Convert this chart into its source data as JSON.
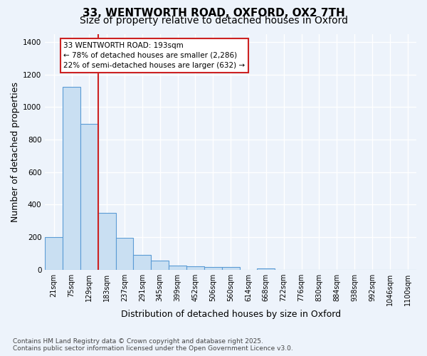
{
  "title_line1": "33, WENTWORTH ROAD, OXFORD, OX2 7TH",
  "title_line2": "Size of property relative to detached houses in Oxford",
  "xlabel": "Distribution of detached houses by size in Oxford",
  "ylabel": "Number of detached properties",
  "categories": [
    "21sqm",
    "75sqm",
    "129sqm",
    "183sqm",
    "237sqm",
    "291sqm",
    "345sqm",
    "399sqm",
    "452sqm",
    "506sqm",
    "560sqm",
    "614sqm",
    "668sqm",
    "722sqm",
    "776sqm",
    "830sqm",
    "884sqm",
    "938sqm",
    "992sqm",
    "1046sqm",
    "1100sqm"
  ],
  "values": [
    200,
    1125,
    895,
    350,
    198,
    90,
    57,
    25,
    22,
    16,
    16,
    0,
    10,
    0,
    0,
    0,
    0,
    0,
    0,
    0,
    0
  ],
  "bar_color": "#c9dff2",
  "bar_edge_color": "#5b9bd5",
  "background_color": "#edf3fb",
  "grid_color": "#d0dff0",
  "vline_color": "#cc2222",
  "annotation_line1": "33 WENTWORTH ROAD: 193sqm",
  "annotation_line2": "← 78% of detached houses are smaller (2,286)",
  "annotation_line3": "22% of semi-detached houses are larger (632) →",
  "annotation_box_color": "#cc2222",
  "annotation_fill": "#ffffff",
  "ylim_max": 1450,
  "yticks": [
    0,
    200,
    400,
    600,
    800,
    1000,
    1200,
    1400
  ],
  "footer_line1": "Contains HM Land Registry data © Crown copyright and database right 2025.",
  "footer_line2": "Contains public sector information licensed under the Open Government Licence v3.0.",
  "title_fontsize": 11,
  "subtitle_fontsize": 10,
  "label_fontsize": 9,
  "tick_fontsize": 7,
  "footer_fontsize": 6.5
}
